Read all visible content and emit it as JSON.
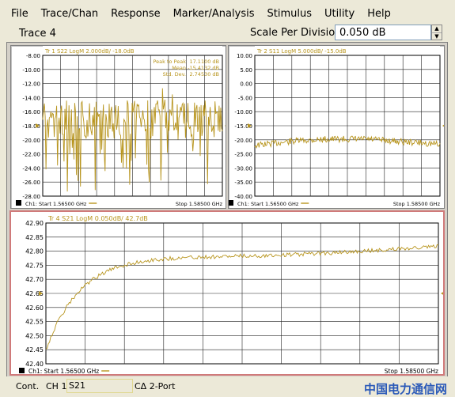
{
  "menu": [
    "File",
    "Trace/Chan",
    "Response",
    "Marker/Analysis",
    "Stimulus",
    "Utility",
    "Help"
  ],
  "toolbar": {
    "active_trace": "Trace 4",
    "scale_label": "Scale Per Division",
    "scale_value": "0.050 dB"
  },
  "windows": [
    {
      "id": "s22",
      "header": "Tr 1  S22 LogM 2.000dB/ -18.0dB",
      "y_ticks": [
        "-8.00",
        "-10.00",
        "-12.00",
        "-14.00",
        "-16.00",
        "-18.00",
        "-20.00",
        "-22.00",
        "-24.00",
        "-26.00",
        "-28.00"
      ],
      "stats": [
        {
          "label": "Peak to Peak",
          "value": "17.1100 dB"
        },
        {
          "label": "Mean",
          "value": "-15.4132 dB"
        },
        {
          "label": "Std. Dev.",
          "value": "2.74530 dB"
        }
      ],
      "start": "Ch1: Start  1.56500 GHz",
      "stop": "Stop  1.58500 GHz",
      "trace_color": "#b8951e"
    },
    {
      "id": "s11",
      "header": "Tr 2  S11 LogM 5.000dB/ -15.0dB",
      "y_ticks": [
        "10.00",
        "5.00",
        "0.00",
        "-5.00",
        "-10.00",
        "-15.00",
        "-20.00",
        "-25.00",
        "-30.00",
        "-35.00",
        "-40.00"
      ],
      "stats": [],
      "start": "Ch1: Start  1.56500 GHz",
      "stop": "Stop  1.58500 GHz",
      "trace_color": "#b8951e"
    },
    {
      "id": "s21",
      "header": "Tr 4  S21 LogM 0.050dB/ 42.7dB",
      "y_ticks": [
        "42.90",
        "42.85",
        "42.80",
        "42.75",
        "42.70",
        "42.65",
        "42.60",
        "42.55",
        "42.50",
        "42.45",
        "42.40"
      ],
      "stats": [],
      "start": "Ch1: Start  1.56500 GHz",
      "stop": "Stop  1.58500 GHz",
      "trace_color": "#b8951e"
    }
  ],
  "status": {
    "mode": "Cont.",
    "channel": "CH 1:",
    "param": "S21",
    "cal": "CΔ 2-Port"
  },
  "watermark": "中国电力通信网"
}
